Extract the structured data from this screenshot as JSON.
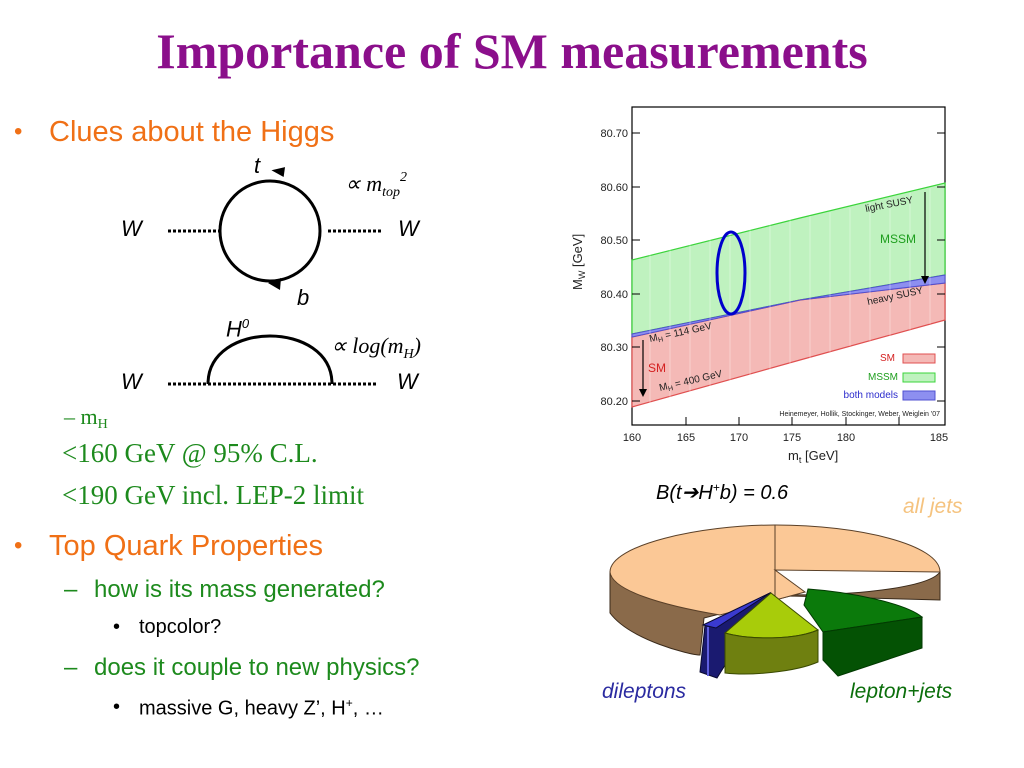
{
  "title": "Importance of SM measurements",
  "bullets": {
    "b1": "Clues about the Higgs",
    "b2": "Top Quark Properties",
    "mh_prefix": "m",
    "mh_sub": "H",
    "mh_line1": "<160 GeV @ 95% C.L.",
    "mh_line2": "<190 GeV incl. LEP-2 limit",
    "q1": "how is its mass generated?",
    "q1a": "topcolor?",
    "q2": "does it couple to new physics?",
    "q2a_text": "massive G, heavy Z’, H",
    "q2a_sup": "+",
    "q2a_tail": ", …"
  },
  "feynman1": {
    "top": "t",
    "bottom": "b",
    "left": "W",
    "right": "W",
    "formula": "∝ m",
    "formula_sub": "top",
    "formula_sup": "2"
  },
  "feynman2": {
    "label": "H",
    "label_sup": "0",
    "left": "W",
    "right": "W",
    "formula": "∝ log(m",
    "formula_sub": "H",
    "formula_close": ")"
  },
  "plot": {
    "ylabel": "M",
    "ylabel_sub": "W",
    "ylabel_unit": " [GeV]",
    "xlabel": "m",
    "xlabel_sub": "t",
    "xlabel_unit": " [GeV]",
    "yticks": [
      "80.70",
      "80.60",
      "80.50",
      "80.40",
      "80.30",
      "80.20"
    ],
    "xticks": [
      "160",
      "165",
      "170",
      "175",
      "180",
      "185"
    ],
    "mh114_pre": "M",
    "mh114_sub": "H",
    "mh114": " = 114 GeV",
    "mh400_pre": "M",
    "mh400_sub": "H",
    "mh400": " = 400 GeV",
    "sm": "SM",
    "mssm": "MSSM",
    "light_susy": "light SUSY",
    "heavy_susy": "heavy SUSY",
    "legend": [
      "SM",
      "MSSM",
      "both models"
    ],
    "credit": "Heinemeyer, Hollik, Stockinger, Weber, Weiglein '07",
    "colors": {
      "sm": "#f4b9b6",
      "mssm": "#bff2bf",
      "both": "#8d8ff0",
      "ellipse": "#0000cc",
      "sm_line": "#d42020"
    }
  },
  "pie": {
    "title_pre": "B(t",
    "arrow": "➔",
    "title_mid": "H",
    "title_sup": "+",
    "title_post": "b) = 0.6",
    "all_jets": "all jets",
    "dileptons": "dileptons",
    "lepton_jets": "lepton+jets",
    "colors": {
      "all_jets": "#fbc896",
      "lepton_jets": "#0b7a0b",
      "tau_jets": "#a8cc0a",
      "dileptons": "#2a2aa0"
    }
  }
}
